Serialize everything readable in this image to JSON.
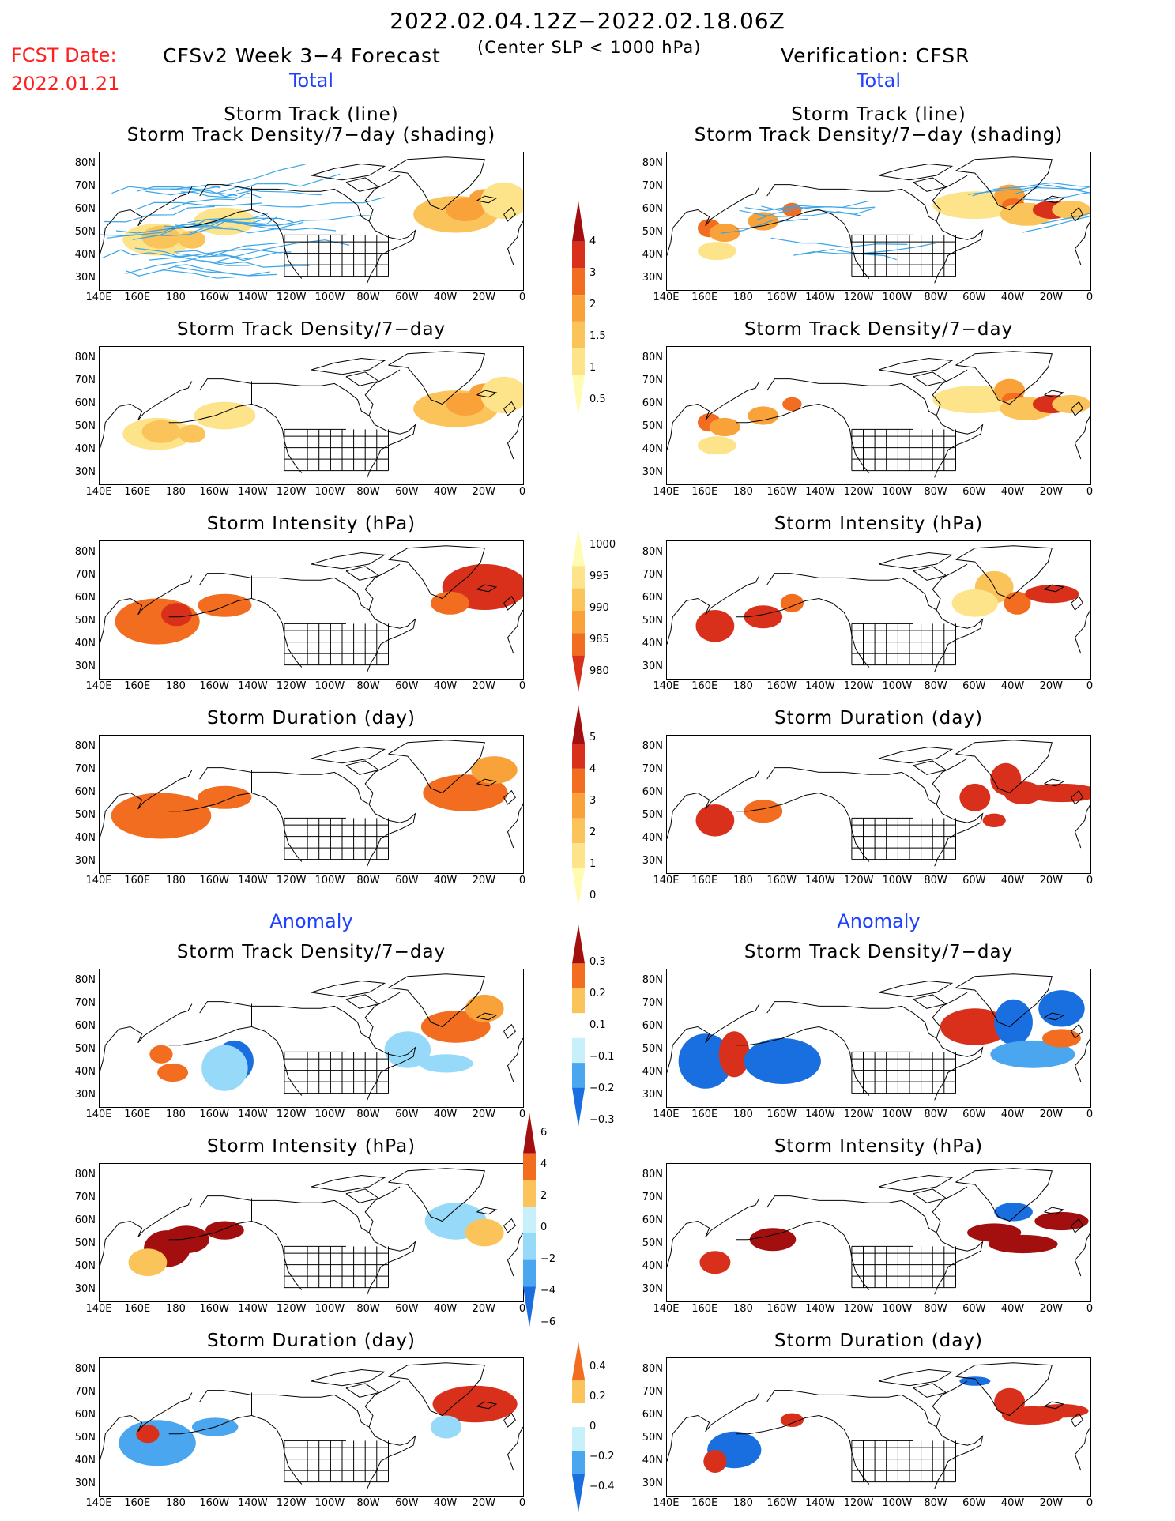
{
  "header": {
    "date_range": "2022.02.04.12Z−2022.02.18.06Z",
    "fcst_label": "FCST Date:",
    "fcst_date": "2022.01.21",
    "model_title": "CFSv2 Week 3−4 Forecast",
    "slp_note": "(Center SLP < 1000 hPa)",
    "verification": "Verification: CFSR"
  },
  "sections": {
    "total": "Total",
    "anomaly": "Anomaly"
  },
  "axes": {
    "lat_labels": [
      "80N",
      "70N",
      "60N",
      "50N",
      "40N",
      "30N"
    ],
    "lon_labels": [
      "140E",
      "160E",
      "180",
      "160W",
      "140W",
      "120W",
      "100W",
      "80W",
      "60W",
      "40W",
      "20W",
      "0"
    ]
  },
  "panels": {
    "row1_title1": "Storm Track (line)",
    "row1_title2": "Storm Track Density/7−day (shading)",
    "density": "Storm Track Density/7−day",
    "intensity": "Storm Intensity (hPa)",
    "duration": "Storm Duration (day)"
  },
  "colorbars": {
    "density": [
      "0.5",
      "1",
      "1.5",
      "2",
      "3",
      "4"
    ],
    "intensity": [
      "1000",
      "995",
      "990",
      "985",
      "980"
    ],
    "duration": [
      "0",
      "1",
      "2",
      "3",
      "4",
      "5"
    ],
    "anom_density": [
      "0.3",
      "0.2",
      "0.1",
      "−0.1",
      "−0.2",
      "−0.3"
    ],
    "anom_intensity": [
      "6",
      "4",
      "2",
      "0",
      "−2",
      "−4",
      "−6"
    ],
    "anom_duration": [
      "0.4",
      "0.2",
      "0",
      "−0.2",
      "−0.4"
    ]
  },
  "colors": {
    "warm": [
      "#fffbb0",
      "#fde38a",
      "#fbc45a",
      "#f9a23a",
      "#f26d20",
      "#d9301c",
      "#a30f0f"
    ],
    "cool": [
      "#c8f0fb",
      "#97d9f8",
      "#4aa6ef",
      "#1a6fe0"
    ],
    "track_fcst": "#3aa5e8",
    "track_obs": "#3aa5e8"
  }
}
